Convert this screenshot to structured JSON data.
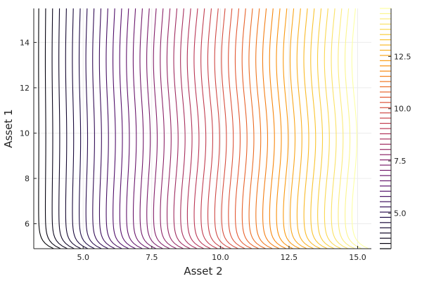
{
  "chart_data": {
    "type": "contour",
    "xlabel": "Asset 2",
    "ylabel": "Asset 1",
    "xlim": [
      3.2,
      15.5
    ],
    "ylim": [
      4.9,
      15.5
    ],
    "x_ticks": [
      5.0,
      7.5,
      10.0,
      12.5,
      15.0
    ],
    "x_tick_labels": [
      "5.0",
      "7.5",
      "10.0",
      "12.5",
      "15.0"
    ],
    "y_ticks": [
      6,
      8,
      10,
      12,
      14
    ],
    "y_tick_labels": [
      "6",
      "8",
      "10",
      "12",
      "14"
    ],
    "grid": true,
    "colormap": "inferno",
    "colorbar": {
      "range": [
        3.3,
        14.8
      ],
      "ticks": [
        5.0,
        7.5,
        10.0,
        12.5
      ],
      "tick_labels": [
        "5.0",
        "7.5",
        "10.0",
        "12.5"
      ]
    },
    "contour_levels": [
      3.3,
      3.55,
      3.8,
      4.05,
      4.3,
      4.55,
      4.8,
      5.05,
      5.3,
      5.55,
      5.8,
      6.05,
      6.3,
      6.55,
      6.8,
      7.05,
      7.3,
      7.55,
      7.8,
      8.05,
      8.3,
      8.55,
      8.8,
      9.05,
      9.3,
      9.55,
      9.8,
      10.05,
      10.3,
      10.55,
      10.8,
      11.05,
      11.3,
      11.55,
      11.8,
      12.05,
      12.3,
      12.55,
      12.8,
      13.05,
      13.3,
      13.55,
      13.8,
      14.05,
      14.3,
      14.55,
      14.8
    ]
  }
}
